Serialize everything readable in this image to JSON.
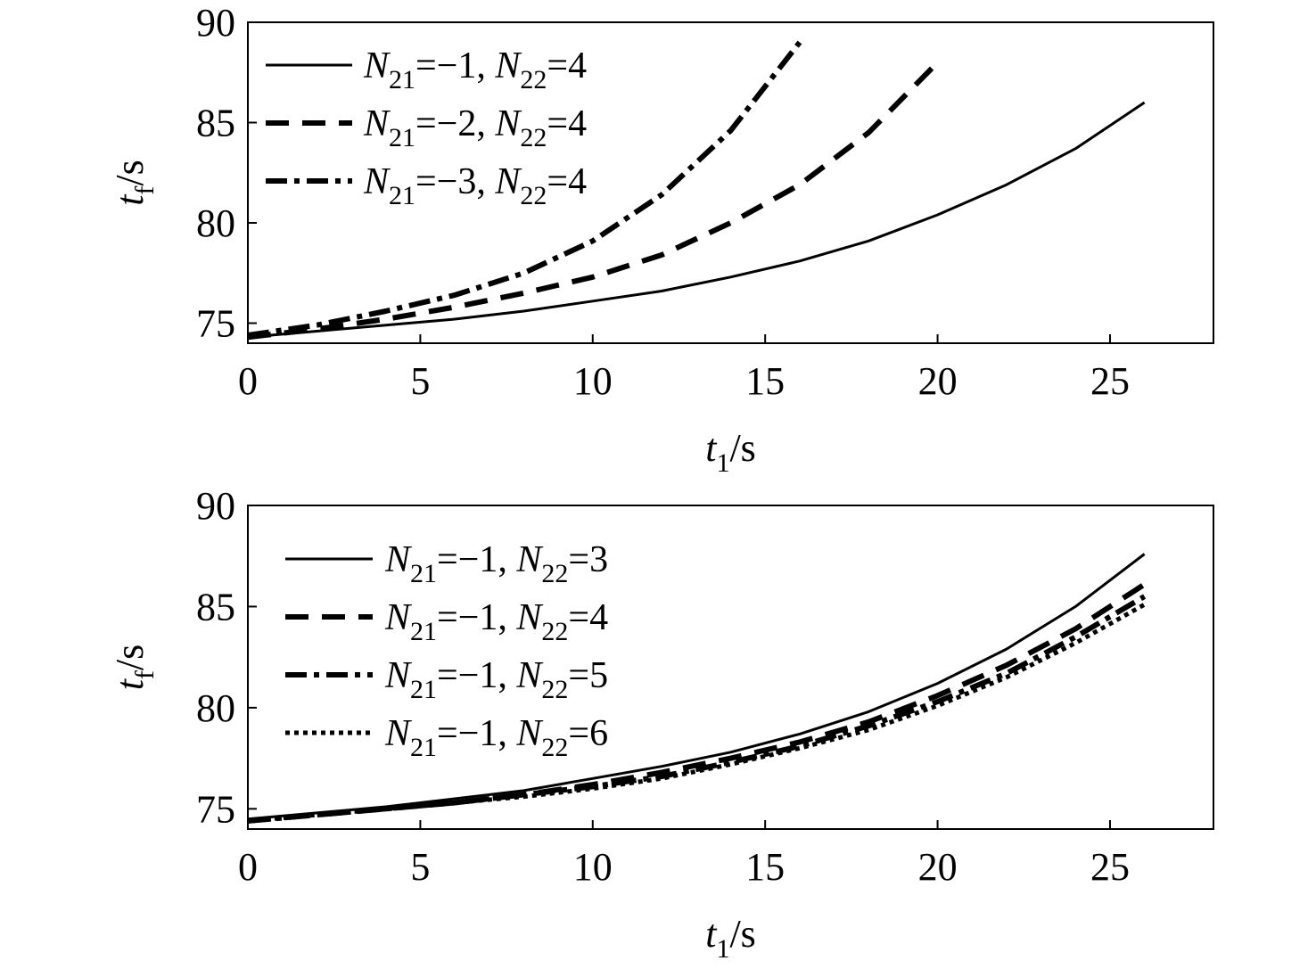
{
  "chart_data": [
    {
      "type": "line",
      "xlabel": {
        "main": "t",
        "sub": "1",
        "unit": "/s"
      },
      "ylabel": {
        "main": "t",
        "sub": "f",
        "unit": "/s"
      },
      "xlim": [
        0,
        28
      ],
      "ylim": [
        74,
        90
      ],
      "xticks": [
        0,
        5,
        10,
        15,
        20,
        25
      ],
      "yticks": [
        75,
        80,
        85,
        90
      ],
      "legend_position": "top-left",
      "series": [
        {
          "name": "N21=−1, N22=4",
          "label_parts": [
            "N",
            "21",
            "=−1, ",
            "N",
            "22",
            "=4"
          ],
          "style": "solid",
          "x": [
            0,
            2,
            4,
            6,
            8,
            10,
            12,
            14,
            16,
            18,
            20,
            22,
            24,
            26
          ],
          "y": [
            74.3,
            74.6,
            74.9,
            75.2,
            75.6,
            76.1,
            76.6,
            77.3,
            78.1,
            79.1,
            80.4,
            81.9,
            83.7,
            86.0
          ]
        },
        {
          "name": "N21=−2, N22=4",
          "label_parts": [
            "N",
            "21",
            "=−2, ",
            "N",
            "22",
            "=4"
          ],
          "style": "dashed",
          "x": [
            0,
            2,
            4,
            6,
            8,
            10,
            12,
            14,
            16,
            18,
            20
          ],
          "y": [
            74.3,
            74.7,
            75.2,
            75.8,
            76.5,
            77.3,
            78.4,
            80.0,
            81.9,
            84.5,
            88.0
          ]
        },
        {
          "name": "N21=−3, N22=4",
          "label_parts": [
            "N",
            "21",
            "=−3, ",
            "N",
            "22",
            "=4"
          ],
          "style": "dashdot",
          "x": [
            0,
            2,
            4,
            6,
            8,
            10,
            12,
            14,
            16
          ],
          "y": [
            74.4,
            74.9,
            75.6,
            76.4,
            77.5,
            79.1,
            81.4,
            84.6,
            89.0
          ]
        }
      ]
    },
    {
      "type": "line",
      "xlabel": {
        "main": "t",
        "sub": "1",
        "unit": "/s"
      },
      "ylabel": {
        "main": "t",
        "sub": "f",
        "unit": "/s"
      },
      "xlim": [
        0,
        28
      ],
      "ylim": [
        74,
        90
      ],
      "xticks": [
        0,
        5,
        10,
        15,
        20,
        25
      ],
      "yticks": [
        75,
        80,
        85,
        90
      ],
      "legend_position": "top-left",
      "series": [
        {
          "name": "N21=−1, N22=3",
          "label_parts": [
            "N",
            "21",
            "=−1, ",
            "N",
            "22",
            "=3"
          ],
          "style": "solid",
          "x": [
            0,
            2,
            4,
            6,
            8,
            10,
            12,
            14,
            16,
            18,
            20,
            22,
            24,
            26
          ],
          "y": [
            74.5,
            74.8,
            75.1,
            75.5,
            75.9,
            76.5,
            77.1,
            77.8,
            78.7,
            79.8,
            81.2,
            82.9,
            85.0,
            87.6
          ]
        },
        {
          "name": "N21=−1, N22=4",
          "label_parts": [
            "N",
            "21",
            "=−1, ",
            "N",
            "22",
            "=4"
          ],
          "style": "dashed",
          "x": [
            0,
            2,
            4,
            6,
            8,
            10,
            12,
            14,
            16,
            18,
            20,
            22,
            24,
            26
          ],
          "y": [
            74.4,
            74.7,
            75.0,
            75.3,
            75.7,
            76.2,
            76.8,
            77.5,
            78.3,
            79.3,
            80.6,
            82.1,
            83.9,
            86.1
          ]
        },
        {
          "name": "N21=−1, N22=5",
          "label_parts": [
            "N",
            "21",
            "=−1, ",
            "N",
            "22",
            "=5"
          ],
          "style": "dashdot",
          "x": [
            0,
            2,
            4,
            6,
            8,
            10,
            12,
            14,
            16,
            18,
            20,
            22,
            24,
            26
          ],
          "y": [
            74.4,
            74.7,
            75.0,
            75.3,
            75.7,
            76.1,
            76.6,
            77.3,
            78.1,
            79.1,
            80.3,
            81.7,
            83.5,
            85.5
          ]
        },
        {
          "name": "N21=−1, N22=6",
          "label_parts": [
            "N",
            "21",
            "=−1, ",
            "N",
            "22",
            "=6"
          ],
          "style": "dotted",
          "x": [
            0,
            2,
            4,
            6,
            8,
            10,
            12,
            14,
            16,
            18,
            20,
            22,
            24,
            26
          ],
          "y": [
            74.4,
            74.7,
            75.0,
            75.3,
            75.6,
            76.0,
            76.5,
            77.2,
            78.0,
            78.9,
            80.1,
            81.5,
            83.2,
            85.1
          ]
        }
      ]
    }
  ]
}
